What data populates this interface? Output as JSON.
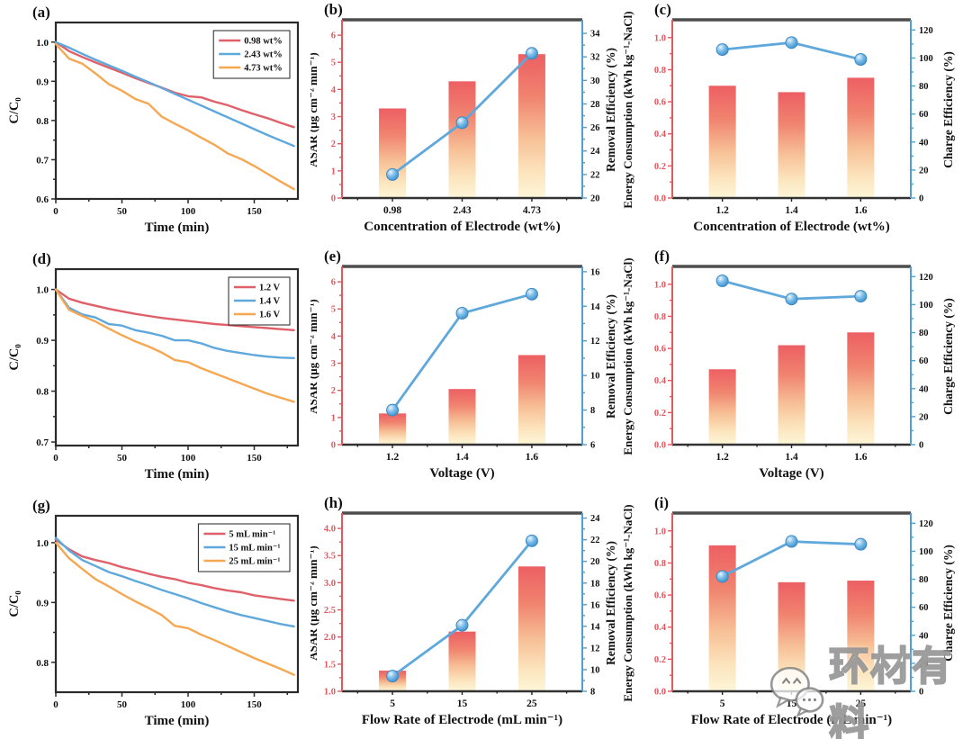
{
  "figure": {
    "background": "#ffffff",
    "watermark": {
      "text": "环材有料",
      "icon": "wechat-chat-bubbles-icon"
    }
  },
  "colors": {
    "series": {
      "red": "#e0606a",
      "blue": "#5fa8dc",
      "orange": "#f5a751"
    },
    "bar_gradient": [
      "#ed5f63",
      "#f0846f",
      "#f7bf95",
      "#fce4bd",
      "#fdf6d8"
    ],
    "left_axis_red": "#e4575e",
    "right_axis_blue": "#4e9fd4",
    "frame_dark": "#2b2b2b",
    "frame_top_gray": "#4d4d4d",
    "marker_edge": "#3b89c4",
    "text_black": "#111111"
  },
  "chart_data": [
    {
      "id": "a",
      "letter": "(a)",
      "type": "line",
      "xlabel": "Time (min)",
      "ylabel": "C/C₀",
      "xlim": [
        0,
        183
      ],
      "xticks": [
        "0",
        "50",
        "100",
        "150"
      ],
      "x_minor_step": 25,
      "ylim": [
        0.6,
        1.05
      ],
      "yticks": [
        "0.6",
        "0.7",
        "0.8",
        "0.9",
        "1.0"
      ],
      "x": [
        0,
        10,
        20,
        30,
        40,
        50,
        60,
        70,
        80,
        90,
        100,
        110,
        120,
        130,
        140,
        150,
        160,
        170,
        180
      ],
      "series": [
        {
          "name": "0.98 wt%",
          "color": "red",
          "y": [
            1.0,
            0.977,
            0.962,
            0.948,
            0.935,
            0.922,
            0.908,
            0.896,
            0.884,
            0.871,
            0.862,
            0.859,
            0.848,
            0.839,
            0.827,
            0.816,
            0.806,
            0.794,
            0.783
          ]
        },
        {
          "name": "2.43 wt%",
          "color": "blue",
          "y": [
            1.0,
            0.986,
            0.97,
            0.955,
            0.941,
            0.927,
            0.912,
            0.898,
            0.883,
            0.868,
            0.853,
            0.838,
            0.823,
            0.808,
            0.793,
            0.778,
            0.763,
            0.749,
            0.735
          ]
        },
        {
          "name": "4.73 wt%",
          "color": "orange",
          "y": [
            0.995,
            0.958,
            0.945,
            0.92,
            0.893,
            0.876,
            0.855,
            0.843,
            0.81,
            0.792,
            0.775,
            0.756,
            0.738,
            0.716,
            0.702,
            0.684,
            0.664,
            0.644,
            0.625
          ]
        }
      ]
    },
    {
      "id": "b",
      "letter": "(b)",
      "type": "bar-line",
      "categories": [
        "0.98",
        "2.43",
        "4.73"
      ],
      "bar_values": [
        3.3,
        4.3,
        5.3
      ],
      "line_values": [
        22.0,
        26.4,
        32.3
      ],
      "left_label": "ASAR (μg cm⁻² min⁻¹)",
      "right_label": "Removal Efficiency (%)",
      "xlabel": "Concentration of Electrode (wt%)",
      "left_lim": [
        0,
        6.5
      ],
      "left_ticks": [
        "0",
        "1",
        "2",
        "3",
        "4",
        "5",
        "6"
      ],
      "right_lim": [
        20,
        35
      ],
      "right_ticks": [
        "20",
        "22",
        "24",
        "26",
        "28",
        "30",
        "32",
        "34"
      ]
    },
    {
      "id": "c",
      "letter": "(c)",
      "type": "bar-line",
      "categories": [
        "1.2",
        "1.4",
        "1.6"
      ],
      "bar_values": [
        0.7,
        0.66,
        0.75
      ],
      "line_values": [
        106,
        111,
        99
      ],
      "left_label": "Energy Consumption (kWh kg⁻¹-NaCl)",
      "right_label": "Charge Efficiency (%)",
      "xlabel": "Concentration of Electrode (wt%)",
      "left_lim": [
        0,
        1.1
      ],
      "left_ticks": [
        "0.0",
        "0.2",
        "0.4",
        "0.6",
        "0.8",
        "1.0"
      ],
      "right_lim": [
        0,
        126
      ],
      "right_ticks": [
        "0",
        "20",
        "40",
        "60",
        "80",
        "100",
        "120"
      ]
    },
    {
      "id": "d",
      "letter": "(d)",
      "type": "line",
      "xlabel": "Time (min)",
      "ylabel": "C/C₀",
      "xlim": [
        0,
        183
      ],
      "xticks": [
        "0",
        "50",
        "100",
        "150"
      ],
      "x_minor_step": 25,
      "ylim": [
        0.693,
        1.04
      ],
      "yticks": [
        "0.7",
        "0.8",
        "0.9",
        "1.0"
      ],
      "x": [
        0,
        10,
        20,
        30,
        40,
        50,
        60,
        70,
        80,
        90,
        100,
        110,
        120,
        130,
        140,
        150,
        160,
        170,
        180
      ],
      "series": [
        {
          "name": "1.2 V",
          "color": "red",
          "y": [
            1.0,
            0.982,
            0.974,
            0.968,
            0.962,
            0.957,
            0.952,
            0.948,
            0.944,
            0.941,
            0.938,
            0.935,
            0.932,
            0.93,
            0.928,
            0.926,
            0.924,
            0.922,
            0.92
          ]
        },
        {
          "name": "1.4 V",
          "color": "blue",
          "y": [
            1.0,
            0.964,
            0.951,
            0.945,
            0.932,
            0.929,
            0.92,
            0.915,
            0.909,
            0.9,
            0.9,
            0.894,
            0.885,
            0.879,
            0.875,
            0.871,
            0.868,
            0.866,
            0.865
          ]
        },
        {
          "name": "1.6 V",
          "color": "orange",
          "y": [
            1.0,
            0.96,
            0.948,
            0.937,
            0.923,
            0.91,
            0.898,
            0.888,
            0.876,
            0.861,
            0.857,
            0.845,
            0.835,
            0.825,
            0.815,
            0.805,
            0.795,
            0.787,
            0.779
          ]
        }
      ]
    },
    {
      "id": "e",
      "letter": "(e)",
      "type": "bar-line",
      "categories": [
        "1.2",
        "1.4",
        "1.6"
      ],
      "bar_values": [
        1.15,
        2.05,
        3.3
      ],
      "line_values": [
        8.0,
        13.6,
        14.7
      ],
      "left_label": "ASAR (μg cm⁻² min⁻¹)",
      "right_label": "Removal Efficiency (%)",
      "xlabel": "Voltage (V)",
      "left_lim": [
        0,
        6.5
      ],
      "left_ticks": [
        "0",
        "1",
        "2",
        "3",
        "4",
        "5",
        "6"
      ],
      "right_lim": [
        6,
        16.2
      ],
      "right_ticks": [
        "6",
        "8",
        "10",
        "12",
        "14",
        "16"
      ]
    },
    {
      "id": "f",
      "letter": "(f)",
      "type": "bar-line",
      "categories": [
        "1.2",
        "1.4",
        "1.6"
      ],
      "bar_values": [
        0.47,
        0.62,
        0.7
      ],
      "line_values": [
        117,
        104,
        106
      ],
      "left_label": "Energy Consumption (kWh kg⁻¹-NaCl)",
      "right_label": "Charge Efficiency (%)",
      "xlabel": "Voltage (V)",
      "left_lim": [
        0,
        1.1
      ],
      "left_ticks": [
        "0.0",
        "0.2",
        "0.4",
        "0.6",
        "0.8",
        "1.0"
      ],
      "right_lim": [
        0,
        126
      ],
      "right_ticks": [
        "0",
        "20",
        "40",
        "60",
        "80",
        "100",
        "120"
      ]
    },
    {
      "id": "g",
      "letter": "(g)",
      "type": "line",
      "xlabel": "Time (min)",
      "ylabel": "C/C₀",
      "xlim": [
        0,
        183
      ],
      "xticks": [
        "0",
        "50",
        "100",
        "150"
      ],
      "x_minor_step": 25,
      "ylim": [
        0.75,
        1.045
      ],
      "yticks": [
        "0.8",
        "0.9",
        "1.0"
      ],
      "x": [
        0,
        10,
        20,
        30,
        40,
        50,
        60,
        70,
        80,
        90,
        100,
        110,
        120,
        130,
        140,
        150,
        160,
        170,
        180
      ],
      "series": [
        {
          "name": "5 mL min⁻¹",
          "color": "red",
          "y": [
            1.005,
            0.989,
            0.977,
            0.971,
            0.966,
            0.959,
            0.954,
            0.948,
            0.943,
            0.939,
            0.933,
            0.929,
            0.924,
            0.92,
            0.917,
            0.912,
            0.909,
            0.906,
            0.903
          ]
        },
        {
          "name": "15 mL min⁻¹",
          "color": "blue",
          "y": [
            1.008,
            0.987,
            0.971,
            0.961,
            0.951,
            0.944,
            0.936,
            0.929,
            0.921,
            0.914,
            0.907,
            0.899,
            0.892,
            0.885,
            0.879,
            0.874,
            0.869,
            0.864,
            0.86
          ]
        },
        {
          "name": "25 mL min⁻¹",
          "color": "orange",
          "y": [
            1.0,
            0.974,
            0.956,
            0.939,
            0.927,
            0.914,
            0.902,
            0.891,
            0.879,
            0.861,
            0.857,
            0.846,
            0.837,
            0.827,
            0.817,
            0.807,
            0.798,
            0.789,
            0.779
          ]
        }
      ]
    },
    {
      "id": "h",
      "letter": "(h)",
      "type": "bar-line",
      "categories": [
        "5",
        "15",
        "25"
      ],
      "bar_values": [
        1.38,
        2.1,
        3.3
      ],
      "line_values": [
        9.4,
        14.1,
        21.9
      ],
      "left_label": "ASAR (μg cm⁻² min⁻¹)",
      "right_label": "Removal Efficiency (%)",
      "xlabel": "Flow Rate of Electrode (mL min⁻¹)",
      "left_lim": [
        1.0,
        4.25
      ],
      "left_ticks": [
        "1.0",
        "1.5",
        "2.0",
        "2.5",
        "3.0",
        "3.5",
        "4.0"
      ],
      "right_lim": [
        8,
        24.3
      ],
      "right_ticks": [
        "8",
        "10",
        "12",
        "14",
        "16",
        "18",
        "20",
        "22",
        "24"
      ]
    },
    {
      "id": "i",
      "letter": "(i)",
      "type": "bar-line",
      "categories": [
        "5",
        "15",
        "25"
      ],
      "bar_values": [
        0.91,
        0.68,
        0.69
      ],
      "line_values": [
        82,
        107,
        105
      ],
      "left_label": "Energy Consumption (kWh kg⁻¹-NaCl)",
      "right_label": "Charge Efficiency (%)",
      "xlabel": "Flow Rate of Electrode (mL min⁻¹)",
      "left_lim": [
        0,
        1.1
      ],
      "left_ticks": [
        "0.0",
        "0.2",
        "0.4",
        "0.6",
        "0.8",
        "1.0"
      ],
      "right_lim": [
        0,
        126
      ],
      "right_ticks": [
        "0",
        "20",
        "40",
        "60",
        "80",
        "100",
        "120"
      ]
    }
  ]
}
